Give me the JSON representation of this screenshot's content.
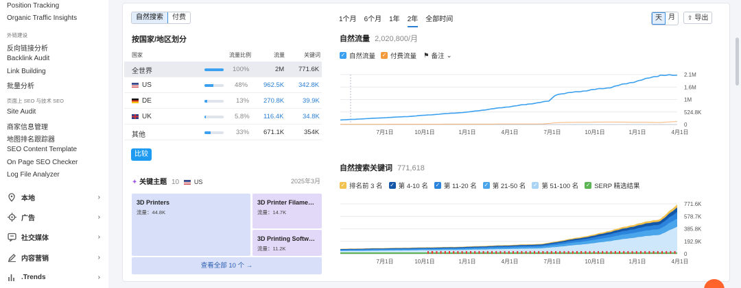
{
  "sidebar": {
    "items_top": [
      "Position Tracking",
      "Organic Traffic Insights"
    ],
    "section_links": "外链建设",
    "links": [
      "反向链接分析",
      "Backlink Audit",
      "Link Building",
      "批量分析"
    ],
    "section_seo": "页面上 SEO 与技术 SEO",
    "seo": [
      "Site Audit",
      "商家信息管理",
      "地图排名跟踪器",
      "SEO Content Template",
      "On Page SEO Checker",
      "Log File Analyzer"
    ],
    "groups": [
      {
        "label": "本地",
        "icon": "location-pin-icon"
      },
      {
        "label": "广告",
        "icon": "target-icon"
      },
      {
        "label": "社交媒体",
        "icon": "social-chat-icon"
      },
      {
        "label": "内容营销",
        "icon": "pencil-icon"
      },
      {
        "label": ".Trends",
        "icon": "bar-chart-icon"
      }
    ]
  },
  "left": {
    "seg": [
      "自然搜索",
      "付费"
    ],
    "title": "按国家/地区划分",
    "headers": {
      "country": "国家",
      "share": "流量比例",
      "traffic": "流量",
      "keywords": "关键词"
    },
    "rows": [
      {
        "name": "全世界",
        "flag": "",
        "share": "100%",
        "pct": 1.0,
        "traffic": "2M",
        "keywords": "771.6K"
      },
      {
        "name": "US",
        "flag": "us",
        "share": "48%",
        "pct": 0.48,
        "traffic": "962.5K",
        "keywords": "342.8K"
      },
      {
        "name": "DE",
        "flag": "de",
        "share": "13%",
        "pct": 0.13,
        "traffic": "270.8K",
        "keywords": "39.9K"
      },
      {
        "name": "UK",
        "flag": "uk",
        "share": "5.8%",
        "pct": 0.058,
        "traffic": "116.4K",
        "keywords": "34.8K"
      },
      {
        "name": "其他",
        "flag": "",
        "share": "33%",
        "pct": 0.33,
        "traffic": "671.1K",
        "keywords": "354K"
      }
    ],
    "compare_label": "比较",
    "topics": {
      "title": "关键主题",
      "count": "10",
      "country": "US",
      "date": "2025年3月",
      "tiles": [
        {
          "name": "3D Printers",
          "label": "流量：",
          "value": "44.8K"
        },
        {
          "name": "3D Printer Filame…",
          "label": "流量：",
          "value": "14.7K"
        },
        {
          "name": "3D Printing Softw…",
          "label": "流量：",
          "value": "11.2K"
        }
      ],
      "view_all": "查看全部 10 个 →"
    }
  },
  "right": {
    "periods": [
      "1个月",
      "6个月",
      "1年",
      "2年",
      "全部时间"
    ],
    "active_period": "2年",
    "gran": [
      "天",
      "月"
    ],
    "export_label": "导出",
    "traffic_title": "自然流量",
    "traffic_value": "2,020,800/月",
    "traffic_legend": [
      "自然流量",
      "付费流量",
      "备注"
    ],
    "traffic_y": [
      "2.1M",
      "1.6M",
      "1M",
      "524.8K",
      "0"
    ],
    "x_labels": [
      "7月1日",
      "10月1日",
      "1月1日",
      "4月1日",
      "7月1日",
      "10月1日",
      "1月1日",
      "4月1日"
    ],
    "kw_title": "自然搜索关键词",
    "kw_value": "771,618",
    "kw_legend": [
      "排名前 3 名",
      "第 4-10 名",
      "第 11-20 名",
      "第 21-50 名",
      "第 51-100 名",
      "SERP 精选结果"
    ],
    "kw_colors": [
      "#f2c14e",
      "#1457a8",
      "#2b83dc",
      "#4aa5ea",
      "#a8d4f5",
      "#5ab552"
    ],
    "kw_y": [
      "771.6K",
      "578.7K",
      "385.8K",
      "192.9K",
      "0"
    ]
  }
}
